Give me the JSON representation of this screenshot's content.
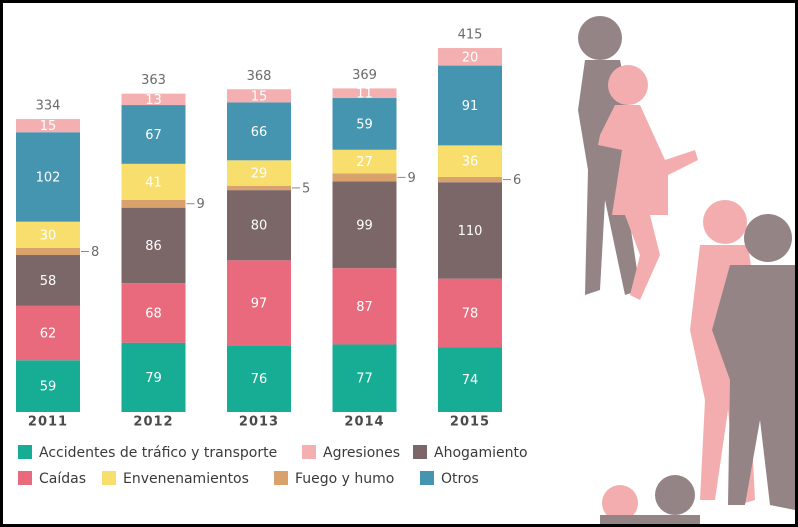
{
  "chart_data": {
    "type": "stacked-bar",
    "categories": [
      "2011",
      "2012",
      "2013",
      "2014",
      "2015"
    ],
    "totals": [
      334,
      363,
      368,
      369,
      415
    ],
    "series": [
      {
        "name": "Accidentes de tráfico y transporte",
        "color": "#17ad94",
        "values": [
          59,
          79,
          76,
          77,
          74
        ]
      },
      {
        "name": "Caídas",
        "color": "#e96a7c",
        "values": [
          62,
          68,
          97,
          87,
          78
        ]
      },
      {
        "name": "Ahogamiento",
        "color": "#7b6668",
        "values": [
          58,
          86,
          80,
          99,
          110
        ]
      },
      {
        "name": "Fuego y humo",
        "color": "#d9a26c",
        "values": [
          8,
          9,
          5,
          9,
          6
        ]
      },
      {
        "name": "Envenenamientos",
        "color": "#f8de6d",
        "values": [
          30,
          41,
          29,
          27,
          36
        ]
      },
      {
        "name": "Otros",
        "color": "#4594b0",
        "values": [
          102,
          67,
          66,
          59,
          91
        ]
      },
      {
        "name": "Agresiones",
        "color": "#f4afb0",
        "values": [
          15,
          13,
          15,
          11,
          20
        ]
      }
    ]
  }
}
